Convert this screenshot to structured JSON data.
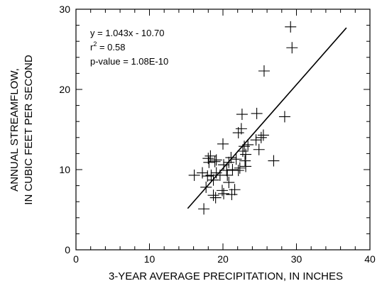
{
  "chart_data": {
    "type": "scatter",
    "title": "",
    "xlabel": "3-YEAR AVERAGE PRECIPITATION, IN INCHES",
    "ylabel_lines": [
      "ANNUAL STREAMFLOW,",
      "IN CUBIC FEET PER SECOND"
    ],
    "xlim": [
      0,
      40
    ],
    "ylim": [
      0,
      30
    ],
    "x_ticks": [
      0,
      10,
      20,
      30,
      40
    ],
    "y_ticks": [
      0,
      10,
      20,
      30
    ],
    "grid": false,
    "legend": "none",
    "annotations": {
      "equation": "y = 1.043x - 10.70",
      "r_squared_prefix": "r",
      "r_squared_exponent": "2",
      "r_squared_value": " = 0.58",
      "p_value": "p-value = 1.08E-10"
    },
    "regression": {
      "slope": 1.043,
      "intercept": -10.7,
      "x_range": [
        15.2,
        36.8
      ]
    },
    "marker": "plus",
    "color": "#000000",
    "points": [
      [
        29.2,
        27.8
      ],
      [
        29.4,
        25.2
      ],
      [
        25.6,
        22.3
      ],
      [
        24.6,
        17.0
      ],
      [
        22.6,
        16.9
      ],
      [
        28.4,
        16.6
      ],
      [
        22.1,
        14.6
      ],
      [
        22.5,
        15.1
      ],
      [
        25.2,
        14.0
      ],
      [
        25.5,
        14.3
      ],
      [
        24.5,
        13.7
      ],
      [
        24.9,
        12.5
      ],
      [
        23.4,
        13.1
      ],
      [
        22.9,
        12.9
      ],
      [
        20.0,
        13.2
      ],
      [
        22.7,
        12.3
      ],
      [
        23.1,
        11.9
      ],
      [
        18.3,
        11.7
      ],
      [
        18.0,
        11.4
      ],
      [
        19.1,
        11.2
      ],
      [
        21.1,
        11.5
      ],
      [
        21.8,
        11.3
      ],
      [
        26.9,
        11.1
      ],
      [
        23.0,
        11.1
      ],
      [
        23.1,
        10.4
      ],
      [
        22.3,
        10.2
      ],
      [
        20.1,
        10.6
      ],
      [
        20.8,
        10.9
      ],
      [
        18.1,
        10.9
      ],
      [
        18.9,
        11.0
      ],
      [
        20.5,
        9.9
      ],
      [
        21.3,
        10.0
      ],
      [
        22.1,
        9.9
      ],
      [
        20.6,
        9.3
      ],
      [
        19.6,
        9.3
      ],
      [
        19.1,
        9.6
      ],
      [
        18.4,
        9.3
      ],
      [
        17.9,
        9.2
      ],
      [
        17.2,
        9.6
      ],
      [
        16.1,
        9.3
      ],
      [
        17.7,
        7.8
      ],
      [
        18.7,
        8.7
      ],
      [
        20.8,
        8.4
      ],
      [
        21.6,
        7.5
      ],
      [
        19.9,
        7.4
      ],
      [
        18.7,
        6.8
      ],
      [
        19.0,
        6.5
      ],
      [
        20.1,
        7.0
      ],
      [
        21.2,
        6.9
      ],
      [
        17.4,
        5.1
      ]
    ]
  }
}
